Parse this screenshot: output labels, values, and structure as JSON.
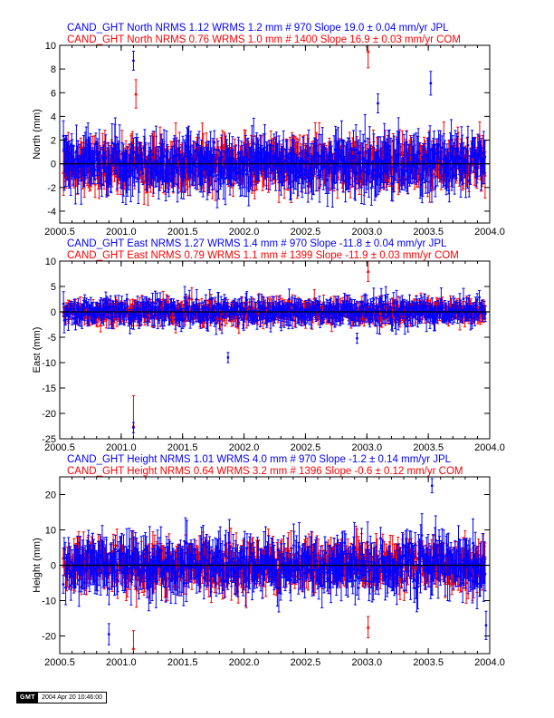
{
  "colors": {
    "series_a": "#0000ff",
    "series_b": "#ff0000",
    "axis": "#000000",
    "zero_line": "#000000"
  },
  "stamp": {
    "logo": "GMT",
    "timestamp": "2004 Apr 20 10:46:00"
  },
  "chart_data": [
    {
      "type": "scatter",
      "subtype": "time-series-with-error-bars",
      "titles": [
        "CAND_GHT North NRMS 1.12 WRMS  1.2 mm # 970 Slope   19.0 ±  0.04 mm/yr JPL",
        "CAND_GHT North NRMS 0.76 WRMS  1.0 mm # 1400 Slope   16.9 ±  0.03 mm/yr COM"
      ],
      "xlabel": "",
      "ylabel": "North (mm)",
      "xlim": [
        2000.5,
        2004.0
      ],
      "ylim": [
        -5,
        10
      ],
      "xticks": [
        "2000.5",
        "2001.0",
        "2001.5",
        "2002.0",
        "2002.5",
        "2003.0",
        "2003.5",
        "2004.0"
      ],
      "yticks": [
        "-4",
        "-2",
        "0",
        "2",
        "4",
        "6",
        "8",
        "10"
      ],
      "series": [
        {
          "name": "JPL",
          "color": "#0000ff",
          "n": 970,
          "scatter_sd": 1.2,
          "err": 1.5
        },
        {
          "name": "COM",
          "color": "#ff0000",
          "n": 1400,
          "scatter_sd": 1.0,
          "err": 1.3
        }
      ],
      "outliers": [
        {
          "series": "JPL",
          "x": 2001.1,
          "y": 8.7,
          "err": 0.8
        },
        {
          "series": "JPL",
          "x": 2003.52,
          "y": 6.8,
          "err": 1.0
        },
        {
          "series": "JPL",
          "x": 2003.09,
          "y": 5.1,
          "err": 0.8
        },
        {
          "series": "COM",
          "x": 2003.01,
          "y": 9.5,
          "err": 1.4
        },
        {
          "series": "COM",
          "x": 2001.12,
          "y": 5.9,
          "err": 1.2
        }
      ]
    },
    {
      "type": "scatter",
      "subtype": "time-series-with-error-bars",
      "titles": [
        "CAND_GHT East NRMS 1.27 WRMS  1.4 mm # 970 Slope  -11.8 ±  0.04 mm/yr JPL",
        "CAND_GHT East NRMS 0.79 WRMS  1.1 mm # 1399 Slope  -11.9 ±  0.03 mm/yr COM"
      ],
      "xlabel": "",
      "ylabel": "East (mm)",
      "xlim": [
        2000.5,
        2004.0
      ],
      "ylim": [
        -25,
        10
      ],
      "xticks": [
        "2000.5",
        "2001.0",
        "2001.5",
        "2002.0",
        "2002.5",
        "2003.0",
        "2003.5",
        "2004.0"
      ],
      "yticks": [
        "-25",
        "-20",
        "-15",
        "-10",
        "-5",
        "0",
        "5",
        "10"
      ],
      "series": [
        {
          "name": "JPL",
          "color": "#0000ff",
          "n": 970,
          "scatter_sd": 1.4,
          "err": 1.7
        },
        {
          "name": "COM",
          "color": "#ff0000",
          "n": 1399,
          "scatter_sd": 1.1,
          "err": 1.5
        }
      ],
      "outliers": [
        {
          "series": "COM",
          "x": 2001.1,
          "y": -22.5,
          "err": 6.0
        },
        {
          "series": "JPL",
          "x": 2001.1,
          "y": -22.8,
          "err": 1.0
        },
        {
          "series": "COM",
          "x": 2003.01,
          "y": 8.0,
          "err": 2.0
        },
        {
          "series": "JPL",
          "x": 2002.92,
          "y": -5.2,
          "err": 1.0
        },
        {
          "series": "JPL",
          "x": 2001.87,
          "y": -9.0,
          "err": 1.0
        }
      ]
    },
    {
      "type": "scatter",
      "subtype": "time-series-with-error-bars",
      "titles": [
        "CAND_GHT Height NRMS 1.01 WRMS  4.0 mm # 970 Slope   -1.2 ±  0.14 mm/yr JPL",
        "CAND_GHT Height NRMS 0.64 WRMS  3.2 mm # 1396 Slope   -0.6 ±  0.12 mm/yr COM"
      ],
      "xlabel": "",
      "ylabel": "Height (mm)",
      "xlim": [
        2000.5,
        2004.0
      ],
      "ylim": [
        -25,
        25
      ],
      "xticks": [
        "2000.5",
        "2001.0",
        "2001.5",
        "2002.0",
        "2002.5",
        "2003.0",
        "2003.5",
        "2004.0"
      ],
      "yticks": [
        "-20",
        "-10",
        "0",
        "10",
        "20"
      ],
      "series": [
        {
          "name": "JPL",
          "color": "#0000ff",
          "n": 970,
          "scatter_sd": 4.0,
          "err": 5.0
        },
        {
          "name": "COM",
          "color": "#ff0000",
          "n": 1396,
          "scatter_sd": 3.2,
          "err": 4.2
        }
      ],
      "outliers": [
        {
          "series": "JPL",
          "x": 2003.53,
          "y": 22.5,
          "err": 2.0
        },
        {
          "series": "COM",
          "x": 2001.1,
          "y": -23.5,
          "err": 5.0
        },
        {
          "series": "JPL",
          "x": 2000.9,
          "y": -19.5,
          "err": 3.0
        },
        {
          "series": "JPL",
          "x": 2003.97,
          "y": -17.0,
          "err": 4.0
        },
        {
          "series": "COM",
          "x": 2003.01,
          "y": -17.5,
          "err": 3.0
        }
      ]
    }
  ]
}
